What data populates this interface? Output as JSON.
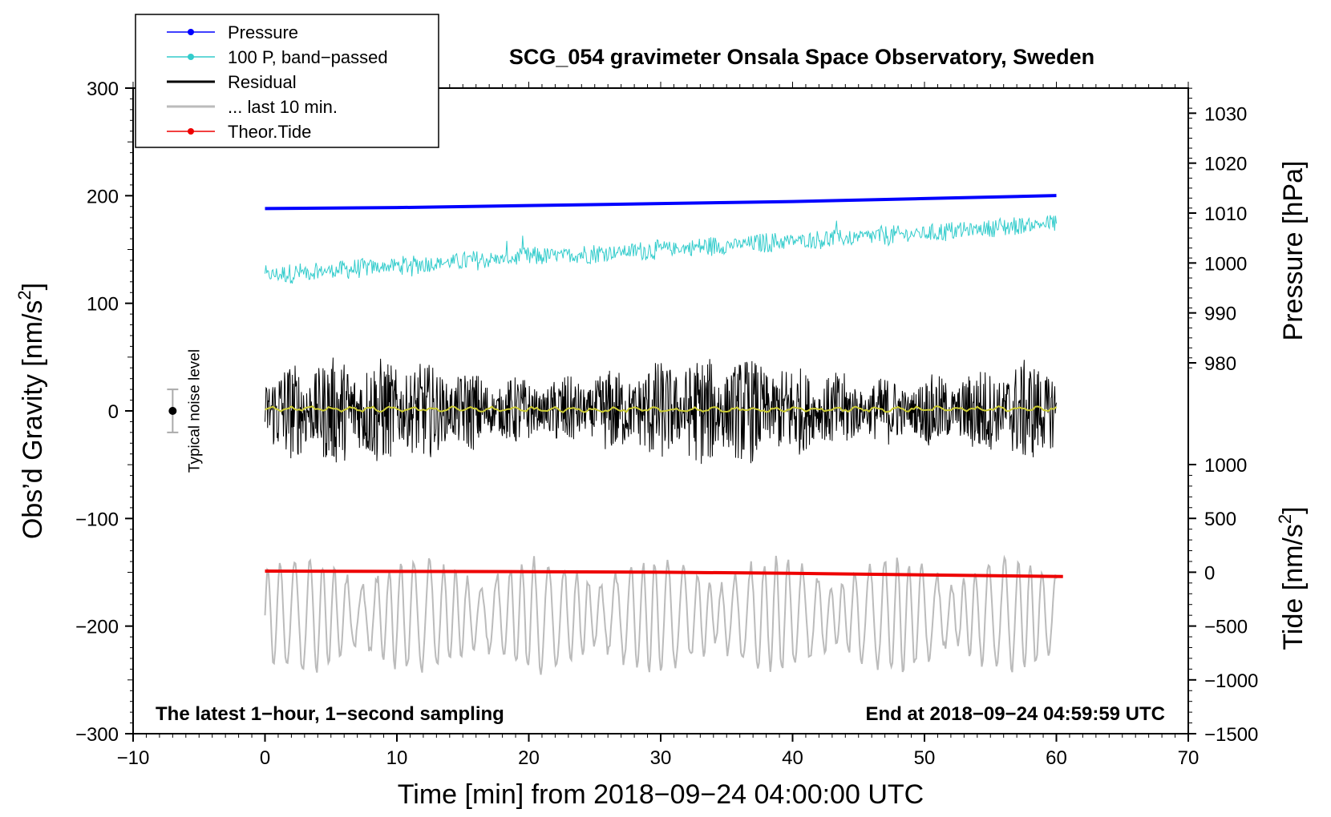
{
  "chart_data": {
    "type": "line",
    "title": "SCG_054 gravimeter Onsala Space Observatory, Sweden",
    "xlabel": "Time [min] from 2018−09−24 04:00:00 UTC",
    "ylabel_left": "Obs’d Gravity [nm/s",
    "ylabel_left_sup": "2",
    "ylabel_left_end": "]",
    "ylabel_pressure": "Pressure [hPa]",
    "ylabel_tide": "Tide [nm/s",
    "ylabel_tide_sup": "2",
    "ylabel_tide_end": "]",
    "xlim": [
      -10,
      70
    ],
    "ylim_left": [
      -300,
      300
    ],
    "ylim_pressure_visible": [
      975,
      1035
    ],
    "ylim_tide": [
      -1500,
      1500
    ],
    "x_ticks": [
      "−10",
      "0",
      "10",
      "20",
      "30",
      "40",
      "50",
      "60",
      "70"
    ],
    "x_tick_values": [
      -10,
      0,
      10,
      20,
      30,
      40,
      50,
      60,
      70
    ],
    "y_left_ticks": [
      "300",
      "200",
      "100",
      "0",
      "−100",
      "−200",
      "−300"
    ],
    "y_left_tick_values": [
      300,
      200,
      100,
      0,
      -100,
      -200,
      -300
    ],
    "pressure_ticks": [
      "1030",
      "1020",
      "1010",
      "1000",
      "990",
      "980"
    ],
    "pressure_tick_values": [
      1030,
      1020,
      1010,
      1000,
      990,
      980
    ],
    "tide_ticks": [
      "1000",
      "500",
      "0",
      "−500",
      "−1000",
      "−1500"
    ],
    "tide_tick_values": [
      1000,
      500,
      0,
      -500,
      -1000,
      -1500
    ],
    "legend": [
      {
        "label": "Pressure",
        "color": "#0000ff",
        "marker": true
      },
      {
        "label": "100 P, band−passed",
        "color": "#33cccc",
        "marker": true
      },
      {
        "label": "Residual",
        "color": "#000000",
        "marker": false
      },
      {
        "label": "... last 10 min.",
        "color": "#bbbbbb",
        "marker": false
      },
      {
        "label": "Theor.Tide",
        "color": "#ee0000",
        "marker": true
      }
    ],
    "noise_label": "Typical noise level",
    "noise_level": 20,
    "noise_x": -7,
    "footnote_left": "The latest 1−hour, 1−second sampling",
    "footnote_right": "End at 2018−09−24 04:59:59 UTC",
    "series": [
      {
        "name": "Pressure",
        "axis": "pressure",
        "color": "#0000ff",
        "x": [
          0,
          10,
          20,
          30,
          40,
          50,
          60
        ],
        "y": [
          1010.9,
          1011.1,
          1011.5,
          1011.9,
          1012.3,
          1012.9,
          1013.5
        ]
      },
      {
        "name": "100 P, band−passed",
        "axis": "left",
        "color": "#33cccc",
        "x": [
          0,
          10,
          20,
          30,
          40,
          50,
          60
        ],
        "y": [
          126,
          135,
          143,
          150,
          158,
          165,
          175
        ],
        "noise_amplitude": 8
      },
      {
        "name": "Residual",
        "axis": "left",
        "color": "#000000",
        "x": [
          0,
          10,
          20,
          30,
          40,
          50,
          60
        ],
        "y": [
          0,
          0,
          0,
          0,
          0,
          0,
          0
        ],
        "noise_amplitude": 38
      },
      {
        "name": "Residual smoothed",
        "axis": "left",
        "color": "#cccc33",
        "x": [
          0,
          30,
          60
        ],
        "y": [
          2,
          1,
          2
        ]
      },
      {
        "name": "... last 10 min.",
        "axis": "left",
        "color": "#bbbbbb",
        "x": [
          0,
          10,
          20,
          30,
          40,
          50,
          60
        ],
        "y": [
          -190,
          -190,
          -190,
          -190,
          -190,
          -190,
          -190
        ],
        "oscillation_amplitude": 45
      },
      {
        "name": "Theor.Tide",
        "axis": "tide",
        "color": "#ee0000",
        "x": [
          0,
          10,
          20,
          30,
          40,
          50,
          60.5
        ],
        "y": [
          10,
          8,
          5,
          0,
          -10,
          -25,
          -40
        ]
      }
    ]
  }
}
